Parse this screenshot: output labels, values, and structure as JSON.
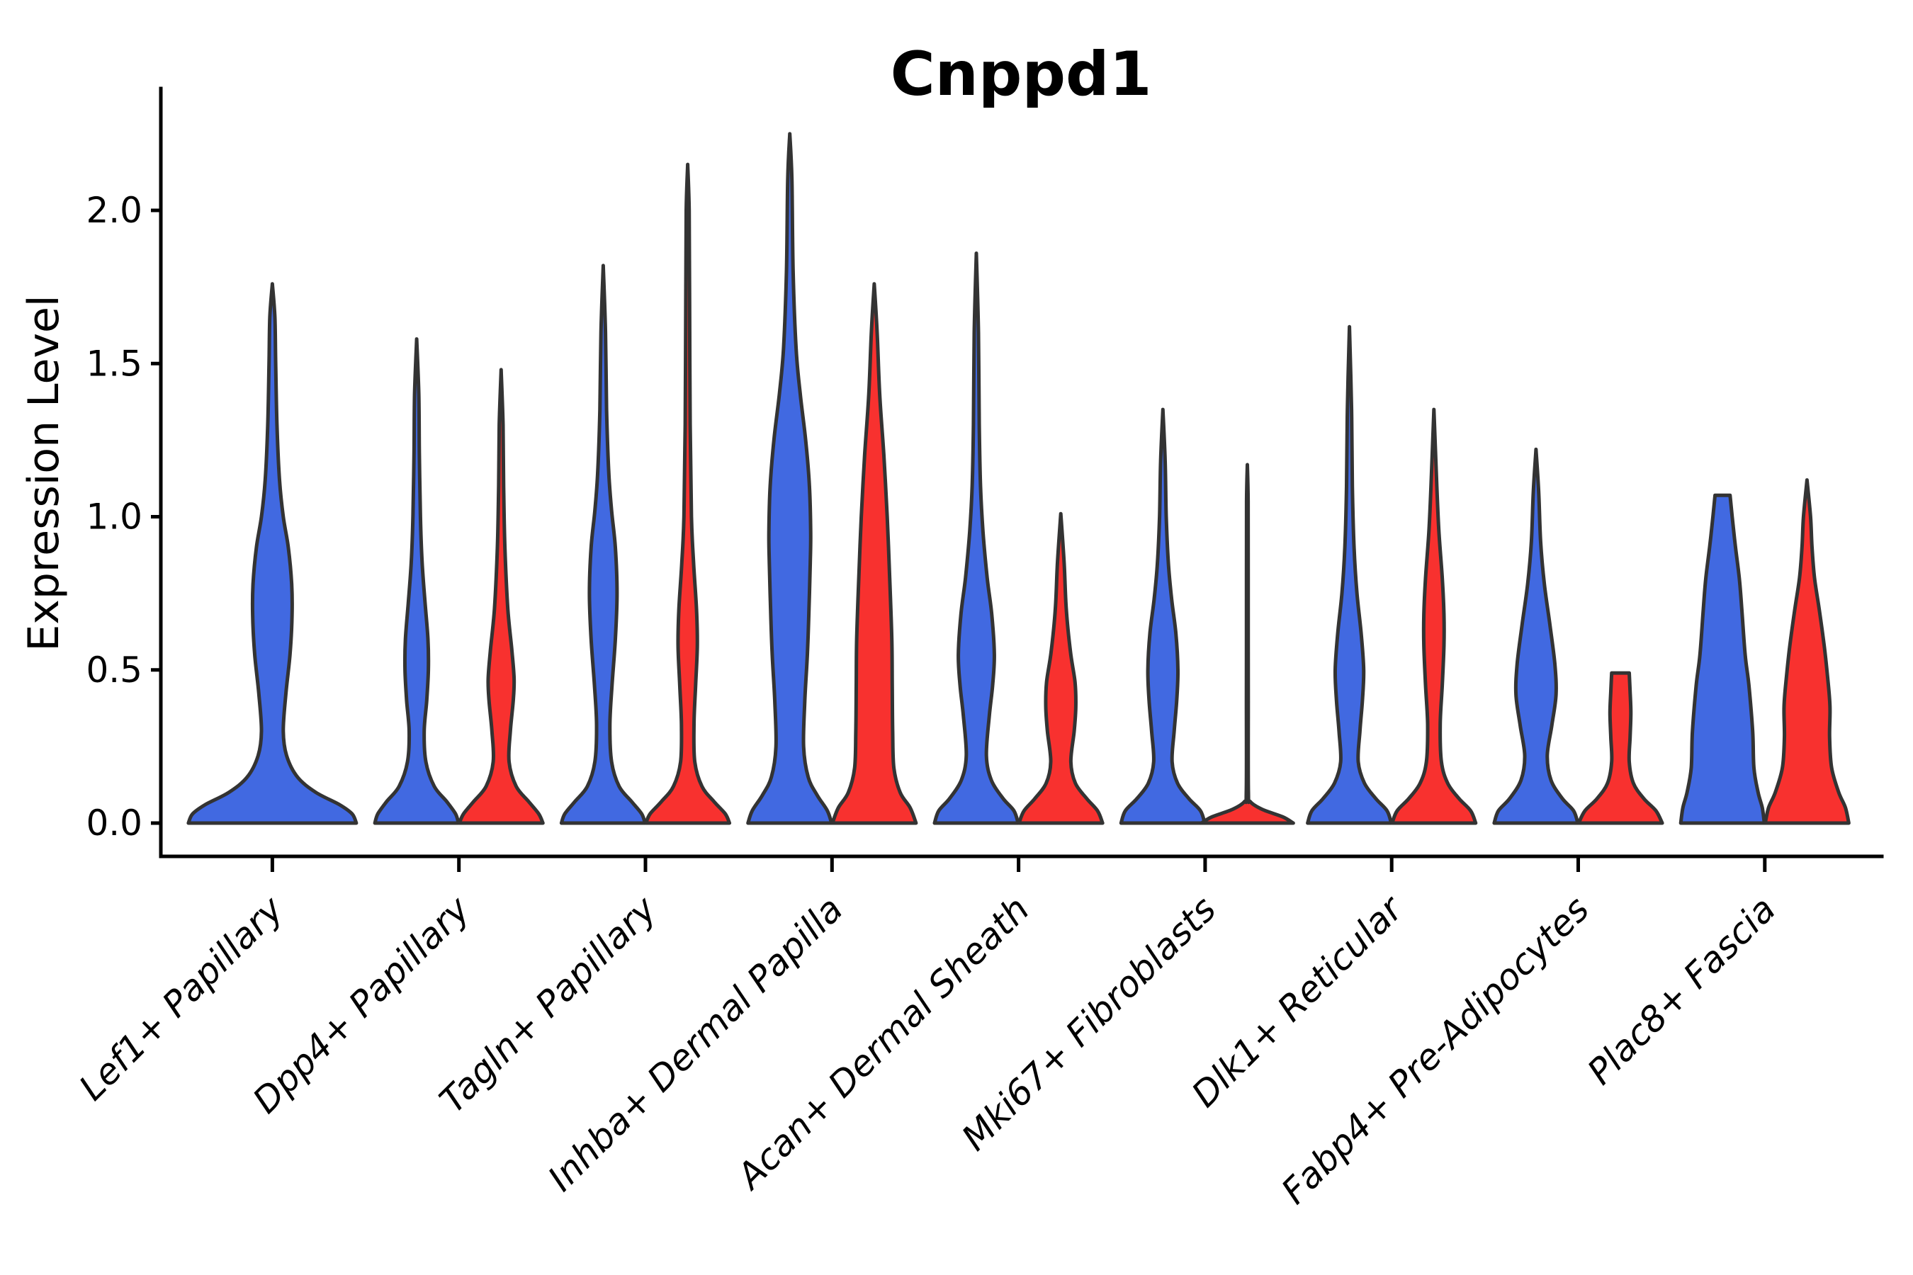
{
  "figure": {
    "title": "Cnppd1",
    "ylabel": "Expression Level"
  },
  "chart_data": {
    "type": "violin",
    "title": "Cnppd1",
    "xlabel": "",
    "ylabel": "Expression Level",
    "ylim": [
      0,
      2.4
    ],
    "grid": false,
    "legend": "none",
    "yticks": [
      0.0,
      0.5,
      1.0,
      1.5,
      2.0
    ],
    "ytick_labels": [
      "0.0",
      "0.5",
      "1.0",
      "1.5",
      "2.0"
    ],
    "categories": [
      "Lef1+ Papillary",
      "Dpp4+ Papillary",
      "Tagln+ Papillary",
      "Inhba+ Dermal Papilla",
      "Acan+ Dermal Sheath",
      "Mki67+ Fibroblasts",
      "Dlk1+ Reticular",
      "Fabp4+ Pre-Adipocytes",
      "Plac8+ Fascia"
    ],
    "colors": {
      "blue": "#4169E1",
      "red": "#F8312F",
      "outline": "#333333"
    },
    "violins": [
      {
        "category": 0,
        "color": "blue",
        "side": "single",
        "max": 1.76,
        "flat_top": false,
        "profile": [
          [
            0,
            1.0
          ],
          [
            0.03,
            0.95
          ],
          [
            0.06,
            0.8
          ],
          [
            0.1,
            0.52
          ],
          [
            0.15,
            0.3
          ],
          [
            0.22,
            0.17
          ],
          [
            0.3,
            0.13
          ],
          [
            0.42,
            0.16
          ],
          [
            0.55,
            0.21
          ],
          [
            0.68,
            0.235
          ],
          [
            0.78,
            0.23
          ],
          [
            0.9,
            0.19
          ],
          [
            1.0,
            0.13
          ],
          [
            1.12,
            0.085
          ],
          [
            1.3,
            0.055
          ],
          [
            1.5,
            0.04
          ],
          [
            1.65,
            0.03
          ],
          [
            1.76,
            0
          ]
        ]
      },
      {
        "category": 1,
        "color": "blue",
        "side": "left",
        "max": 1.58,
        "flat_top": false,
        "profile": [
          [
            0,
            1.0
          ],
          [
            0.03,
            0.93
          ],
          [
            0.07,
            0.72
          ],
          [
            0.12,
            0.42
          ],
          [
            0.2,
            0.22
          ],
          [
            0.3,
            0.18
          ],
          [
            0.4,
            0.24
          ],
          [
            0.5,
            0.28
          ],
          [
            0.6,
            0.27
          ],
          [
            0.72,
            0.2
          ],
          [
            0.85,
            0.13
          ],
          [
            1.0,
            0.09
          ],
          [
            1.2,
            0.065
          ],
          [
            1.4,
            0.05
          ],
          [
            1.58,
            0
          ]
        ]
      },
      {
        "category": 1,
        "color": "red",
        "side": "right",
        "max": 1.48,
        "flat_top": false,
        "profile": [
          [
            0,
            1.0
          ],
          [
            0.03,
            0.9
          ],
          [
            0.07,
            0.66
          ],
          [
            0.12,
            0.36
          ],
          [
            0.2,
            0.19
          ],
          [
            0.3,
            0.22
          ],
          [
            0.4,
            0.29
          ],
          [
            0.47,
            0.31
          ],
          [
            0.56,
            0.26
          ],
          [
            0.7,
            0.16
          ],
          [
            0.9,
            0.09
          ],
          [
            1.1,
            0.06
          ],
          [
            1.3,
            0.045
          ],
          [
            1.48,
            0
          ]
        ]
      },
      {
        "category": 2,
        "color": "blue",
        "side": "left",
        "max": 1.82,
        "flat_top": false,
        "profile": [
          [
            0,
            1.0
          ],
          [
            0.03,
            0.92
          ],
          [
            0.07,
            0.68
          ],
          [
            0.12,
            0.38
          ],
          [
            0.2,
            0.2
          ],
          [
            0.32,
            0.16
          ],
          [
            0.45,
            0.21
          ],
          [
            0.6,
            0.29
          ],
          [
            0.75,
            0.33
          ],
          [
            0.9,
            0.29
          ],
          [
            1.02,
            0.2
          ],
          [
            1.15,
            0.13
          ],
          [
            1.35,
            0.08
          ],
          [
            1.6,
            0.055
          ],
          [
            1.82,
            0
          ]
        ]
      },
      {
        "category": 2,
        "color": "red",
        "side": "right",
        "max": 2.15,
        "flat_top": false,
        "profile": [
          [
            0,
            1.0
          ],
          [
            0.03,
            0.9
          ],
          [
            0.07,
            0.63
          ],
          [
            0.12,
            0.34
          ],
          [
            0.2,
            0.17
          ],
          [
            0.32,
            0.15
          ],
          [
            0.45,
            0.19
          ],
          [
            0.58,
            0.23
          ],
          [
            0.7,
            0.21
          ],
          [
            0.85,
            0.14
          ],
          [
            1.0,
            0.09
          ],
          [
            1.3,
            0.06
          ],
          [
            1.7,
            0.045
          ],
          [
            2.0,
            0.035
          ],
          [
            2.15,
            0
          ]
        ]
      },
      {
        "category": 3,
        "color": "blue",
        "side": "left",
        "max": 2.25,
        "flat_top": false,
        "profile": [
          [
            0,
            1.0
          ],
          [
            0.04,
            0.9
          ],
          [
            0.09,
            0.66
          ],
          [
            0.15,
            0.44
          ],
          [
            0.25,
            0.33
          ],
          [
            0.4,
            0.36
          ],
          [
            0.55,
            0.42
          ],
          [
            0.7,
            0.46
          ],
          [
            0.85,
            0.49
          ],
          [
            0.95,
            0.5
          ],
          [
            1.1,
            0.47
          ],
          [
            1.25,
            0.38
          ],
          [
            1.4,
            0.25
          ],
          [
            1.55,
            0.15
          ],
          [
            1.8,
            0.08
          ],
          [
            2.1,
            0.05
          ],
          [
            2.25,
            0
          ]
        ]
      },
      {
        "category": 3,
        "color": "red",
        "side": "right",
        "max": 1.76,
        "flat_top": false,
        "profile": [
          [
            0,
            1.0
          ],
          [
            0.05,
            0.86
          ],
          [
            0.1,
            0.62
          ],
          [
            0.18,
            0.47
          ],
          [
            0.3,
            0.44
          ],
          [
            0.45,
            0.43
          ],
          [
            0.6,
            0.42
          ],
          [
            0.8,
            0.37
          ],
          [
            1.0,
            0.31
          ],
          [
            1.2,
            0.23
          ],
          [
            1.4,
            0.13
          ],
          [
            1.6,
            0.07
          ],
          [
            1.76,
            0
          ]
        ]
      },
      {
        "category": 4,
        "color": "blue",
        "side": "left",
        "max": 1.86,
        "flat_top": false,
        "profile": [
          [
            0,
            1.0
          ],
          [
            0.04,
            0.9
          ],
          [
            0.08,
            0.64
          ],
          [
            0.14,
            0.36
          ],
          [
            0.22,
            0.24
          ],
          [
            0.35,
            0.31
          ],
          [
            0.45,
            0.39
          ],
          [
            0.55,
            0.43
          ],
          [
            0.68,
            0.37
          ],
          [
            0.8,
            0.26
          ],
          [
            0.95,
            0.16
          ],
          [
            1.1,
            0.1
          ],
          [
            1.3,
            0.07
          ],
          [
            1.6,
            0.05
          ],
          [
            1.86,
            0
          ]
        ]
      },
      {
        "category": 4,
        "color": "red",
        "side": "right",
        "max": 1.01,
        "flat_top": false,
        "profile": [
          [
            0,
            1.0
          ],
          [
            0.04,
            0.88
          ],
          [
            0.08,
            0.62
          ],
          [
            0.13,
            0.35
          ],
          [
            0.2,
            0.24
          ],
          [
            0.3,
            0.32
          ],
          [
            0.38,
            0.36
          ],
          [
            0.46,
            0.34
          ],
          [
            0.56,
            0.23
          ],
          [
            0.7,
            0.13
          ],
          [
            0.85,
            0.08
          ],
          [
            1.01,
            0
          ]
        ]
      },
      {
        "category": 5,
        "color": "blue",
        "side": "left",
        "max": 1.35,
        "flat_top": false,
        "profile": [
          [
            0,
            1.0
          ],
          [
            0.04,
            0.9
          ],
          [
            0.08,
            0.62
          ],
          [
            0.13,
            0.35
          ],
          [
            0.2,
            0.22
          ],
          [
            0.3,
            0.27
          ],
          [
            0.4,
            0.33
          ],
          [
            0.5,
            0.36
          ],
          [
            0.62,
            0.31
          ],
          [
            0.73,
            0.21
          ],
          [
            0.85,
            0.13
          ],
          [
            1.0,
            0.08
          ],
          [
            1.18,
            0.055
          ],
          [
            1.35,
            0
          ]
        ]
      },
      {
        "category": 5,
        "color": "red",
        "side": "right",
        "max": 1.17,
        "flat_top": false,
        "profile": [
          [
            0,
            1.1
          ],
          [
            0.02,
            0.85
          ],
          [
            0.045,
            0.35
          ],
          [
            0.07,
            0.07
          ],
          [
            0.1,
            0.025
          ],
          [
            0.4,
            0.022
          ],
          [
            0.8,
            0.02
          ],
          [
            1.05,
            0.018
          ],
          [
            1.17,
            0
          ]
        ]
      },
      {
        "category": 6,
        "color": "blue",
        "side": "left",
        "max": 1.62,
        "flat_top": false,
        "profile": [
          [
            0,
            1.0
          ],
          [
            0.04,
            0.9
          ],
          [
            0.08,
            0.63
          ],
          [
            0.13,
            0.36
          ],
          [
            0.2,
            0.21
          ],
          [
            0.3,
            0.25
          ],
          [
            0.4,
            0.31
          ],
          [
            0.5,
            0.34
          ],
          [
            0.62,
            0.28
          ],
          [
            0.75,
            0.18
          ],
          [
            0.9,
            0.11
          ],
          [
            1.1,
            0.07
          ],
          [
            1.35,
            0.05
          ],
          [
            1.62,
            0
          ]
        ]
      },
      {
        "category": 6,
        "color": "red",
        "side": "right",
        "max": 1.35,
        "flat_top": false,
        "profile": [
          [
            0,
            1.0
          ],
          [
            0.04,
            0.88
          ],
          [
            0.08,
            0.6
          ],
          [
            0.13,
            0.33
          ],
          [
            0.2,
            0.18
          ],
          [
            0.32,
            0.15
          ],
          [
            0.45,
            0.2
          ],
          [
            0.58,
            0.24
          ],
          [
            0.68,
            0.24
          ],
          [
            0.8,
            0.2
          ],
          [
            0.95,
            0.12
          ],
          [
            1.1,
            0.07
          ],
          [
            1.35,
            0
          ]
        ]
      },
      {
        "category": 7,
        "color": "blue",
        "side": "left",
        "max": 1.22,
        "flat_top": false,
        "profile": [
          [
            0,
            1.0
          ],
          [
            0.04,
            0.9
          ],
          [
            0.08,
            0.63
          ],
          [
            0.14,
            0.36
          ],
          [
            0.22,
            0.27
          ],
          [
            0.32,
            0.38
          ],
          [
            0.42,
            0.48
          ],
          [
            0.52,
            0.45
          ],
          [
            0.65,
            0.33
          ],
          [
            0.78,
            0.2
          ],
          [
            0.92,
            0.11
          ],
          [
            1.08,
            0.065
          ],
          [
            1.22,
            0
          ]
        ]
      },
      {
        "category": 7,
        "color": "red",
        "side": "right",
        "max": 0.49,
        "flat_top": true,
        "profile": [
          [
            0,
            1.0
          ],
          [
            0.04,
            0.85
          ],
          [
            0.08,
            0.56
          ],
          [
            0.13,
            0.31
          ],
          [
            0.2,
            0.21
          ],
          [
            0.28,
            0.23
          ],
          [
            0.36,
            0.25
          ],
          [
            0.43,
            0.23
          ],
          [
            0.49,
            0.21
          ]
        ]
      },
      {
        "category": 8,
        "color": "blue",
        "side": "left",
        "max": 1.07,
        "flat_top": true,
        "profile": [
          [
            0,
            1.0
          ],
          [
            0.05,
            0.95
          ],
          [
            0.1,
            0.85
          ],
          [
            0.18,
            0.75
          ],
          [
            0.3,
            0.72
          ],
          [
            0.45,
            0.63
          ],
          [
            0.55,
            0.54
          ],
          [
            0.7,
            0.46
          ],
          [
            0.8,
            0.4
          ],
          [
            0.9,
            0.31
          ],
          [
            1.0,
            0.23
          ],
          [
            1.07,
            0.18
          ]
        ]
      },
      {
        "category": 8,
        "color": "red",
        "side": "right",
        "max": 1.12,
        "flat_top": false,
        "profile": [
          [
            0,
            1.0
          ],
          [
            0.05,
            0.92
          ],
          [
            0.1,
            0.76
          ],
          [
            0.18,
            0.59
          ],
          [
            0.28,
            0.54
          ],
          [
            0.38,
            0.55
          ],
          [
            0.48,
            0.49
          ],
          [
            0.58,
            0.41
          ],
          [
            0.7,
            0.29
          ],
          [
            0.8,
            0.18
          ],
          [
            0.9,
            0.12
          ],
          [
            1.0,
            0.085
          ],
          [
            1.12,
            0
          ]
        ]
      }
    ]
  }
}
